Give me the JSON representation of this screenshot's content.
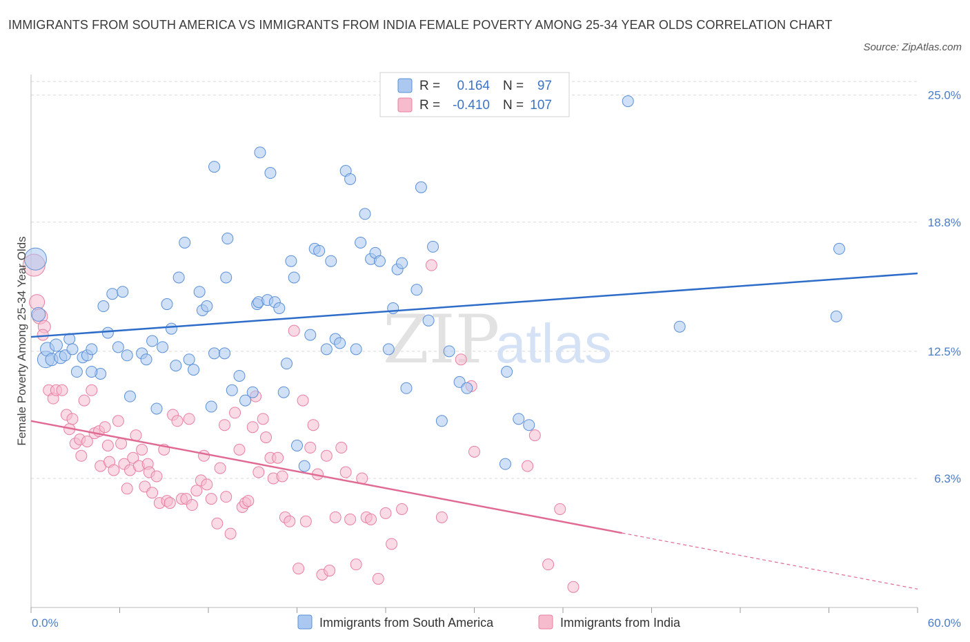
{
  "title": "IMMIGRANTS FROM SOUTH AMERICA VS IMMIGRANTS FROM INDIA FEMALE POVERTY AMONG 25-34 YEAR OLDS CORRELATION CHART",
  "source": "Source: ZipAtlas.com",
  "watermark": {
    "zip": "ZIP",
    "atlas": "atlas"
  },
  "colors": {
    "blue_fill": "#aac8f0",
    "blue_stroke": "#5a8fd6",
    "blue_line": "#2d6cc8",
    "pink_fill": "#f6bccd",
    "pink_stroke": "#e87fa0",
    "pink_line": "#e06a93",
    "grid": "#d8d8d8",
    "tick_text": "#4a7cc9"
  },
  "legend": {
    "r_label": "R =",
    "n_label": "N =",
    "rows": [
      {
        "r": "0.164",
        "n": "97"
      },
      {
        "r": "-0.410",
        "n": "107"
      }
    ]
  },
  "chart_data": {
    "type": "scatter",
    "title": "IMMIGRANTS FROM SOUTH AMERICA VS IMMIGRANTS FROM INDIA FEMALE POVERTY AMONG 25-34 YEAR OLDS CORRELATION CHART",
    "xlabel": "",
    "ylabel": "Female Poverty Among 25-34 Year Olds",
    "xlim": [
      0,
      60
    ],
    "ylim": [
      0,
      26
    ],
    "x_tick_labels": [
      "0.0%",
      "60.0%"
    ],
    "y_ticks": [
      6.3,
      12.5,
      18.8,
      25.0
    ],
    "y_tick_labels": [
      "6.3%",
      "12.5%",
      "18.8%",
      "25.0%"
    ],
    "grid": true,
    "legend_position": "top-center",
    "series": [
      {
        "name": "Immigrants from South America",
        "color": "#5a8fd6",
        "trend": {
          "x": [
            0,
            60
          ],
          "y": [
            13.2,
            16.3
          ],
          "solid_until": 60
        },
        "points": [
          [
            0.3,
            17.0,
            16
          ],
          [
            0.5,
            14.3,
            10
          ],
          [
            1.0,
            12.1,
            12
          ],
          [
            1.1,
            12.6,
            10
          ],
          [
            1.4,
            12.1,
            9
          ],
          [
            1.7,
            12.8,
            9
          ],
          [
            2.0,
            12.2,
            9
          ],
          [
            2.3,
            12.3,
            8
          ],
          [
            2.6,
            13.1,
            8
          ],
          [
            2.8,
            12.6,
            8
          ],
          [
            3.1,
            11.5,
            8
          ],
          [
            3.5,
            12.2,
            8
          ],
          [
            3.8,
            12.3,
            8
          ],
          [
            4.1,
            12.6,
            8
          ],
          [
            4.7,
            11.4,
            8
          ],
          [
            4.9,
            14.7,
            8
          ],
          [
            5.2,
            13.4,
            8
          ],
          [
            5.5,
            15.3,
            8
          ],
          [
            5.9,
            12.7,
            8
          ],
          [
            6.2,
            15.4,
            8
          ],
          [
            6.5,
            12.3,
            8
          ],
          [
            6.7,
            10.3,
            8
          ],
          [
            7.5,
            12.4,
            8
          ],
          [
            7.8,
            12.1,
            8
          ],
          [
            8.2,
            13.0,
            8
          ],
          [
            8.5,
            9.7,
            8
          ],
          [
            8.9,
            12.7,
            8
          ],
          [
            9.2,
            14.8,
            8
          ],
          [
            9.5,
            13.6,
            8
          ],
          [
            9.8,
            11.8,
            8
          ],
          [
            10.0,
            16.1,
            8
          ],
          [
            10.4,
            17.8,
            8
          ],
          [
            10.7,
            12.1,
            8
          ],
          [
            11.0,
            11.6,
            8
          ],
          [
            11.4,
            15.4,
            8
          ],
          [
            11.6,
            14.5,
            8
          ],
          [
            11.9,
            14.7,
            8
          ],
          [
            12.2,
            9.8,
            8
          ],
          [
            12.4,
            12.4,
            8
          ],
          [
            13.1,
            12.4,
            8
          ],
          [
            12.4,
            21.5,
            8
          ],
          [
            13.2,
            16.1,
            8
          ],
          [
            13.6,
            10.6,
            8
          ],
          [
            13.3,
            18.0,
            8
          ],
          [
            14.1,
            11.3,
            8
          ],
          [
            14.5,
            10.1,
            8
          ],
          [
            15.0,
            10.5,
            8
          ],
          [
            15.3,
            14.8,
            8
          ],
          [
            15.4,
            14.9,
            8
          ],
          [
            15.5,
            22.2,
            8
          ],
          [
            16.0,
            15.0,
            8
          ],
          [
            16.2,
            21.2,
            8
          ],
          [
            16.5,
            14.9,
            8
          ],
          [
            16.8,
            14.6,
            8
          ],
          [
            17.1,
            10.5,
            8
          ],
          [
            17.3,
            11.9,
            8
          ],
          [
            17.6,
            16.9,
            8
          ],
          [
            17.8,
            16.1,
            8
          ],
          [
            18.0,
            7.9,
            8
          ],
          [
            18.5,
            6.9,
            8
          ],
          [
            18.9,
            13.3,
            8
          ],
          [
            19.2,
            17.5,
            8
          ],
          [
            19.5,
            17.4,
            8
          ],
          [
            20.0,
            12.6,
            8
          ],
          [
            20.3,
            16.9,
            8
          ],
          [
            20.6,
            13.1,
            8
          ],
          [
            20.9,
            12.9,
            8
          ],
          [
            21.3,
            21.3,
            8
          ],
          [
            21.6,
            20.9,
            8
          ],
          [
            22.0,
            12.6,
            8
          ],
          [
            22.3,
            17.8,
            8
          ],
          [
            22.6,
            19.2,
            8
          ],
          [
            23.0,
            17.0,
            8
          ],
          [
            23.3,
            17.3,
            8
          ],
          [
            23.6,
            16.9,
            8
          ],
          [
            24.2,
            12.6,
            8
          ],
          [
            24.5,
            14.6,
            8
          ],
          [
            24.8,
            16.5,
            8
          ],
          [
            25.1,
            16.8,
            8
          ],
          [
            25.4,
            10.7,
            8
          ],
          [
            26.1,
            15.5,
            8
          ],
          [
            26.4,
            20.5,
            8
          ],
          [
            26.9,
            14.0,
            8
          ],
          [
            27.2,
            17.6,
            8
          ],
          [
            27.8,
            9.1,
            8
          ],
          [
            28.3,
            12.5,
            8
          ],
          [
            29.0,
            11.0,
            8
          ],
          [
            29.5,
            10.7,
            8
          ],
          [
            32.1,
            7.0,
            8
          ],
          [
            32.2,
            11.5,
            8
          ],
          [
            33.7,
            8.9,
            8
          ],
          [
            33.0,
            9.2,
            8
          ],
          [
            40.4,
            24.7,
            8
          ],
          [
            43.9,
            13.7,
            8
          ],
          [
            54.5,
            14.2,
            8
          ],
          [
            54.7,
            17.5,
            8
          ],
          [
            4.1,
            11.5,
            8
          ]
        ]
      },
      {
        "name": "Immigrants from India",
        "color": "#e87fa0",
        "trend": {
          "x": [
            0,
            60
          ],
          "y": [
            9.1,
            0.9
          ],
          "solid_until": 40
        }
      }
    ]
  },
  "india_points": [
    [
      0.2,
      16.7,
      16
    ],
    [
      0.4,
      14.9,
      11
    ],
    [
      0.6,
      14.2,
      11
    ],
    [
      0.9,
      13.7,
      9
    ],
    [
      0.8,
      13.3,
      8
    ],
    [
      1.2,
      10.6,
      8
    ],
    [
      1.5,
      10.2,
      8
    ],
    [
      1.7,
      10.6,
      8
    ],
    [
      2.1,
      10.6,
      8
    ],
    [
      2.4,
      9.4,
      8
    ],
    [
      2.6,
      8.7,
      8
    ],
    [
      2.8,
      9.2,
      8
    ],
    [
      3.0,
      8.0,
      8
    ],
    [
      3.3,
      8.2,
      8
    ],
    [
      3.4,
      7.4,
      8
    ],
    [
      3.6,
      10.1,
      8
    ],
    [
      3.8,
      8.1,
      8
    ],
    [
      4.1,
      10.6,
      8
    ],
    [
      4.3,
      8.5,
      8
    ],
    [
      4.6,
      8.6,
      8
    ],
    [
      4.7,
      6.9,
      8
    ],
    [
      5.0,
      8.8,
      8
    ],
    [
      5.2,
      7.9,
      8
    ],
    [
      5.3,
      7.1,
      8
    ],
    [
      5.6,
      6.7,
      8
    ],
    [
      5.9,
      9.1,
      8
    ],
    [
      6.1,
      8.0,
      8
    ],
    [
      6.3,
      7.0,
      8
    ],
    [
      6.5,
      5.8,
      8
    ],
    [
      6.7,
      6.7,
      8
    ],
    [
      6.9,
      7.3,
      8
    ],
    [
      7.1,
      8.4,
      8
    ],
    [
      7.3,
      6.9,
      8
    ],
    [
      7.5,
      7.7,
      8
    ],
    [
      7.7,
      5.9,
      8
    ],
    [
      7.9,
      7.0,
      8
    ],
    [
      8.0,
      6.6,
      8
    ],
    [
      8.2,
      5.6,
      8
    ],
    [
      8.5,
      6.4,
      8
    ],
    [
      8.7,
      5.1,
      8
    ],
    [
      9.0,
      7.7,
      8
    ],
    [
      9.2,
      5.2,
      8
    ],
    [
      9.4,
      5.1,
      8
    ],
    [
      9.6,
      9.4,
      8
    ],
    [
      9.9,
      9.1,
      8
    ],
    [
      10.2,
      5.3,
      8
    ],
    [
      10.5,
      5.3,
      8
    ],
    [
      10.7,
      9.2,
      8
    ],
    [
      10.9,
      5.0,
      8
    ],
    [
      11.2,
      5.7,
      8
    ],
    [
      11.5,
      6.2,
      8
    ],
    [
      11.7,
      7.4,
      8
    ],
    [
      11.9,
      6.0,
      8
    ],
    [
      12.2,
      5.3,
      8
    ],
    [
      12.6,
      4.1,
      8
    ],
    [
      12.8,
      6.8,
      8
    ],
    [
      13.1,
      8.9,
      8
    ],
    [
      13.2,
      5.4,
      8
    ],
    [
      13.5,
      3.6,
      8
    ],
    [
      13.8,
      9.5,
      8
    ],
    [
      14.1,
      7.7,
      8
    ],
    [
      14.3,
      4.9,
      8
    ],
    [
      14.5,
      5.1,
      8
    ],
    [
      14.7,
      5.2,
      8
    ],
    [
      15.0,
      8.8,
      8
    ],
    [
      15.2,
      10.3,
      8
    ],
    [
      15.4,
      6.6,
      8
    ],
    [
      15.7,
      9.2,
      8
    ],
    [
      15.9,
      8.3,
      8
    ],
    [
      16.2,
      7.3,
      8
    ],
    [
      16.4,
      6.3,
      8
    ],
    [
      16.7,
      7.3,
      8
    ],
    [
      17.0,
      6.4,
      8
    ],
    [
      17.2,
      4.4,
      8
    ],
    [
      17.5,
      4.2,
      8
    ],
    [
      17.8,
      13.5,
      8
    ],
    [
      18.1,
      1.9,
      8
    ],
    [
      18.4,
      10.1,
      8
    ],
    [
      18.6,
      4.2,
      8
    ],
    [
      18.9,
      7.8,
      8
    ],
    [
      19.1,
      8.9,
      8
    ],
    [
      19.4,
      6.5,
      8
    ],
    [
      19.7,
      1.6,
      8
    ],
    [
      20.0,
      7.4,
      8
    ],
    [
      20.2,
      1.8,
      8
    ],
    [
      20.6,
      4.4,
      8
    ],
    [
      21.0,
      7.8,
      8
    ],
    [
      21.3,
      6.6,
      8
    ],
    [
      21.6,
      4.3,
      8
    ],
    [
      22.0,
      2.1,
      8
    ],
    [
      22.4,
      6.3,
      8
    ],
    [
      22.7,
      4.4,
      8
    ],
    [
      23.0,
      4.3,
      8
    ],
    [
      23.5,
      1.4,
      8
    ],
    [
      24.0,
      4.6,
      8
    ],
    [
      24.4,
      3.1,
      8
    ],
    [
      25.1,
      4.8,
      8
    ],
    [
      27.1,
      16.7,
      8
    ],
    [
      27.8,
      4.4,
      8
    ],
    [
      29.1,
      12.1,
      8
    ],
    [
      29.8,
      10.8,
      8
    ],
    [
      30.0,
      7.6,
      8
    ],
    [
      33.6,
      6.9,
      8
    ],
    [
      34.1,
      8.4,
      8
    ],
    [
      35.0,
      2.1,
      8
    ],
    [
      35.8,
      4.8,
      8
    ],
    [
      36.7,
      1.0,
      8
    ]
  ],
  "bottom_legend": {
    "items": [
      {
        "label": "Immigrants from South America",
        "color": "#aac8f0",
        "stroke": "#5a8fd6"
      },
      {
        "label": "Immigrants from India",
        "color": "#f6bccd",
        "stroke": "#e87fa0"
      }
    ]
  }
}
